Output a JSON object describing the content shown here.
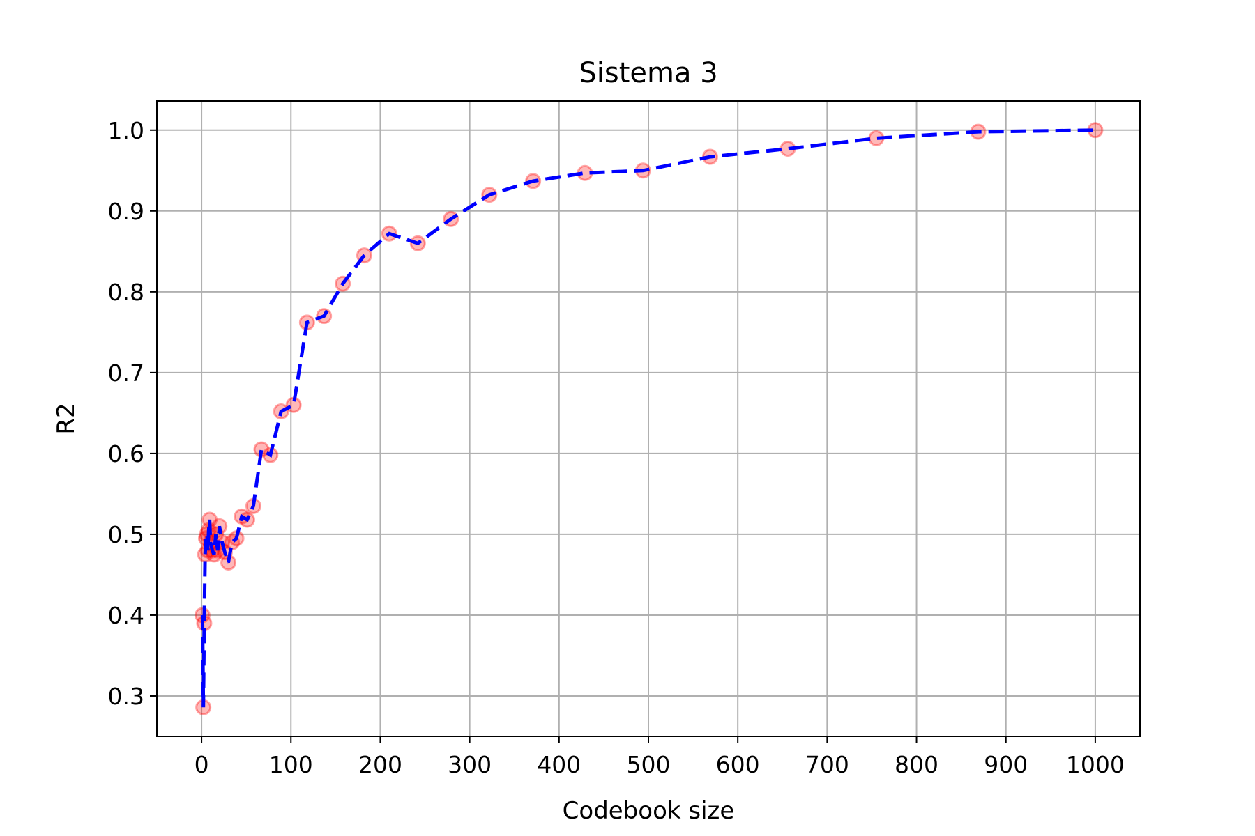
{
  "chart_data": {
    "type": "line",
    "title": "Sistema 3",
    "xlabel": "Codebook size",
    "ylabel": "R2",
    "xlim": [
      -50,
      1050
    ],
    "ylim": [
      0.25,
      1.036
    ],
    "xticks": [
      0,
      100,
      200,
      300,
      400,
      500,
      600,
      700,
      800,
      900,
      1000
    ],
    "xtick_labels": [
      "0",
      "100",
      "200",
      "300",
      "400",
      "500",
      "600",
      "700",
      "800",
      "900",
      "1000"
    ],
    "yticks": [
      0.3,
      0.4,
      0.5,
      0.6,
      0.7,
      0.8,
      0.9,
      1.0
    ],
    "ytick_labels": [
      "0.3",
      "0.4",
      "0.5",
      "0.6",
      "0.7",
      "0.8",
      "0.9",
      "1.0"
    ],
    "grid": true,
    "colors": {
      "line": "#0000ff",
      "marker_fill": "#ff0000",
      "marker_edge": "#ff0000"
    },
    "series": [
      {
        "x": [
          1,
          2,
          3,
          4,
          5,
          6,
          7,
          8,
          9,
          10,
          12,
          14,
          16,
          18,
          20,
          23,
          26,
          30,
          34,
          39,
          45,
          51,
          58,
          67,
          77,
          89,
          103,
          118,
          137,
          158,
          182,
          210,
          242,
          279,
          322,
          371,
          429,
          494,
          569,
          656,
          755,
          869,
          1000
        ],
        "y": [
          0.4,
          0.286,
          0.39,
          0.475,
          0.495,
          0.5,
          0.48,
          0.505,
          0.518,
          0.49,
          0.48,
          0.475,
          0.5,
          0.48,
          0.51,
          0.49,
          0.478,
          0.465,
          0.49,
          0.495,
          0.522,
          0.518,
          0.535,
          0.605,
          0.598,
          0.652,
          0.66,
          0.762,
          0.77,
          0.81,
          0.845,
          0.872,
          0.86,
          0.89,
          0.92,
          0.937,
          0.947,
          0.95,
          0.967,
          0.977,
          0.99,
          0.998,
          1.0
        ]
      }
    ]
  }
}
